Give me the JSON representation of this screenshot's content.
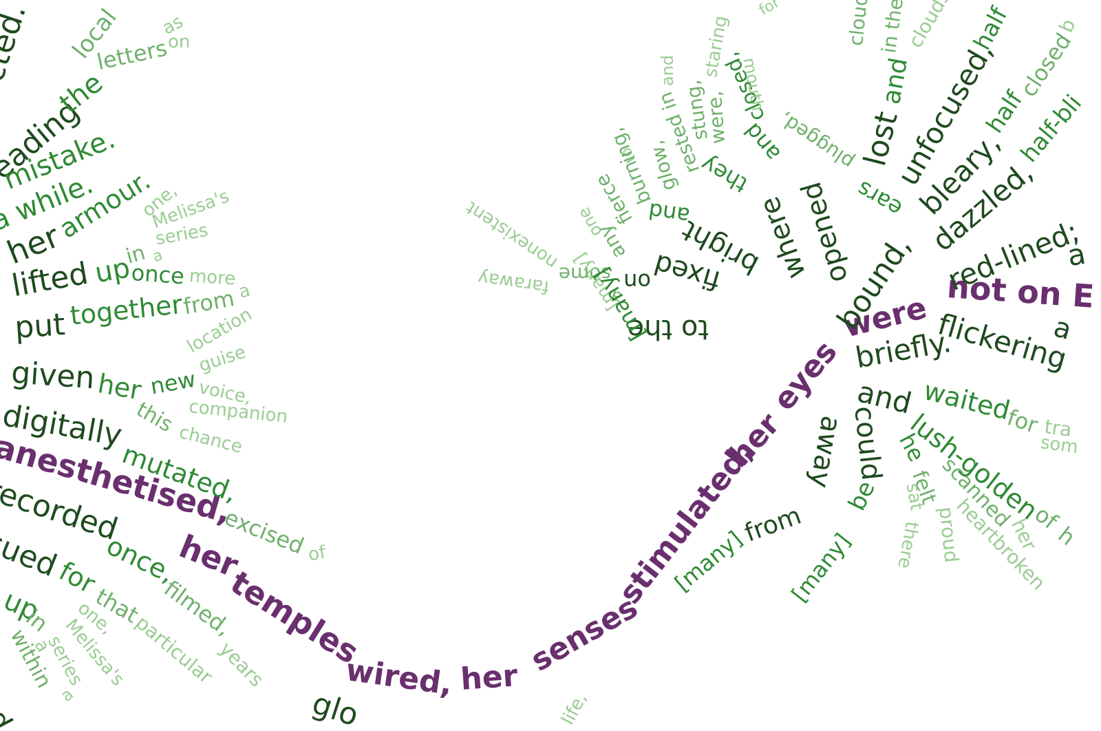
{
  "palette": {
    "dark": "#1f4a1f",
    "mid": "#2f8a34",
    "light": "#6fb06b",
    "pale": "#9acc93",
    "spine": "#6a2f6e"
  },
  "spine": {
    "w1": "anesthetised,",
    "w2": "her",
    "w3": "temples",
    "w4": "wired,",
    "w5": "her",
    "w6": "senses",
    "w7": "stimulated,",
    "w8": "her",
    "w9": "eyes",
    "w10": "were",
    "w11": "not on E"
  },
  "left": {
    "l1": "cted.",
    "l2": "eading",
    "l3": "the",
    "l4": "local",
    "l5": "letters",
    "l6": "as",
    "l7": "on",
    "l8": "mistake.",
    "l9": "a while.",
    "l10": "her",
    "l11": "armour.",
    "l12": "one,",
    "l13": "Melissa's",
    "l14": "series",
    "l15": "lifted",
    "l16": "up",
    "l17": "in",
    "l18": "a",
    "l19": "once",
    "l20": "more",
    "l21": "put",
    "l22": "together",
    "l23": "from",
    "l24": "a",
    "l25": "location",
    "l26": "guise",
    "l27": "given",
    "l28": "her",
    "l29": "new",
    "l30": "voice,",
    "l31": "this",
    "l32": "companion",
    "l33": "chance",
    "l34": "digitally",
    "l35": "mutated,",
    "l36": "excised",
    "l37": "of",
    "l38": "recorded",
    "l39": "once,",
    "l40": "filmed,",
    "l41": "years",
    "l42": "sued",
    "l43": "for",
    "l44": "that",
    "l45": "particular",
    "l46": "one,",
    "l47": "Melissa's",
    "l48": "series",
    "l49": "t up",
    "l50": "in",
    "l51": "a",
    "l52": "within",
    "l53": "a",
    "l54": "ted",
    "l55": "glo"
  },
  "center": {
    "c1": "nonexistent",
    "c2": "faraway",
    "c3": "some",
    "c4": "one",
    "c5": "any",
    "c6": "a",
    "c7": "[many]",
    "c8": "on",
    "c9": "fierce",
    "c10": "to",
    "c11": "burning,",
    "c12": "glow,",
    "c13": "fixed",
    "c14": "to the",
    "c15": "[many]",
    "c16": "and",
    "c17": "bright",
    "c18": "rested in",
    "c19": "stung,",
    "c20": "and",
    "c21": "they",
    "c22": "were,",
    "c23": "staring",
    "c24": "where",
    "c25": "opened",
    "c26": "and",
    "c27": "closed,",
    "c28": "mouth",
    "c29": "ears",
    "c30": "plugged,",
    "c31": "bound,",
    "c32": "lost",
    "c33": "and",
    "c34": "in the",
    "c35": "cloud",
    "c36": "clouds",
    "c37": "unfocused,",
    "c38": "half",
    "c39": "bleary,",
    "c40": "half",
    "c41": "closed",
    "c42": "b",
    "c43": "dazzled,",
    "c44": "half-bli",
    "c45": "red-lined;",
    "c46": "a",
    "c47": "flickering",
    "c48": "a",
    "c49": "briefly.",
    "c50": "and",
    "c51": "could",
    "c52": "be",
    "c53": "[many]",
    "c54": "away",
    "c55": "from",
    "c56": "[many]",
    "c57": "waited",
    "c58": "for",
    "c59": "tra",
    "c60": "som",
    "c61": "lush-golden",
    "c62": "of",
    "c63": "h",
    "c64": "he",
    "c65": "felt",
    "c66": "proud",
    "c67": "sat",
    "c68": "there",
    "c69": "scanned",
    "c70": "her",
    "c71": "heartbroken",
    "c72": "life,",
    "c73": "for"
  }
}
